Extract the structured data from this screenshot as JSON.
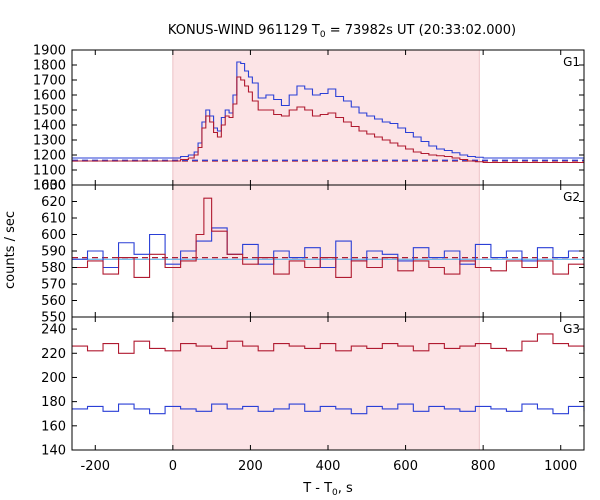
{
  "chart_data": {
    "type": "line",
    "title_parts": [
      "KONUS-WIND 961129 T",
      "0",
      " = 73982s UT (20:33:02.000)"
    ],
    "xlabel_parts": [
      "T - T",
      "0",
      ", s"
    ],
    "ylabel": "counts / sec",
    "xlim": [
      -260,
      1060
    ],
    "x_ticks": [
      -200,
      0,
      200,
      400,
      600,
      800,
      1000
    ],
    "highlight_interval": [
      0,
      790
    ],
    "colors": {
      "red": "#b01a30",
      "blue": "#2a3fd6",
      "light_blue": "#4aa8e8",
      "highlight": "#fce4e6"
    },
    "panels": [
      {
        "label": "G1",
        "ylim": [
          1000,
          1900
        ],
        "y_ticks": [
          1000,
          1100,
          1200,
          1300,
          1400,
          1500,
          1600,
          1700,
          1800,
          1900
        ],
        "background_levels": [
          1160,
          1165
        ],
        "series": [
          {
            "color_key": "blue",
            "x": [
              -260,
              0,
              20,
              40,
              55,
              65,
              75,
              85,
              95,
              105,
              115,
              125,
              135,
              145,
              155,
              165,
              175,
              185,
              195,
              205,
              220,
              240,
              260,
              280,
              300,
              320,
              340,
              360,
              380,
              400,
              420,
              440,
              460,
              480,
              500,
              520,
              540,
              560,
              580,
              600,
              620,
              640,
              660,
              680,
              700,
              720,
              740,
              760,
              780,
              800,
              1060
            ],
            "y": [
              1180,
              1180,
              1190,
              1200,
              1220,
              1280,
              1420,
              1500,
              1460,
              1380,
              1360,
              1450,
              1500,
              1480,
              1600,
              1820,
              1810,
              1760,
              1720,
              1680,
              1580,
              1600,
              1570,
              1530,
              1600,
              1660,
              1640,
              1600,
              1610,
              1640,
              1590,
              1560,
              1520,
              1480,
              1460,
              1440,
              1420,
              1410,
              1380,
              1350,
              1320,
              1290,
              1260,
              1240,
              1230,
              1215,
              1200,
              1190,
              1185,
              1180,
              1175
            ]
          },
          {
            "color_key": "red",
            "x": [
              -260,
              0,
              20,
              40,
              55,
              65,
              75,
              85,
              95,
              105,
              115,
              125,
              135,
              145,
              155,
              165,
              175,
              185,
              195,
              205,
              220,
              240,
              260,
              280,
              300,
              320,
              340,
              360,
              380,
              400,
              420,
              440,
              460,
              480,
              500,
              520,
              540,
              560,
              580,
              600,
              620,
              640,
              660,
              680,
              700,
              720,
              740,
              760,
              780,
              800,
              1060
            ],
            "y": [
              1160,
              1160,
              1170,
              1180,
              1200,
              1250,
              1380,
              1460,
              1420,
              1350,
              1320,
              1400,
              1460,
              1450,
              1540,
              1720,
              1700,
              1660,
              1620,
              1560,
              1500,
              1500,
              1470,
              1460,
              1500,
              1520,
              1500,
              1460,
              1470,
              1480,
              1450,
              1420,
              1390,
              1360,
              1340,
              1320,
              1300,
              1280,
              1260,
              1240,
              1220,
              1210,
              1200,
              1195,
              1190,
              1180,
              1170,
              1160,
              1155,
              1150,
              1150
            ]
          }
        ]
      },
      {
        "label": "G2",
        "ylim": [
          550,
          630
        ],
        "y_ticks": [
          550,
          560,
          570,
          580,
          590,
          600,
          610,
          620,
          630
        ],
        "background_levels": [
          586
        ],
        "series": [
          {
            "color_key": "light_blue",
            "x": [
              -260,
              1060
            ],
            "y": [
              585,
              585
            ]
          },
          {
            "color_key": "blue",
            "x": [
              -260,
              -220,
              -180,
              -140,
              -100,
              -60,
              -20,
              20,
              60,
              100,
              140,
              180,
              220,
              260,
              300,
              340,
              380,
              420,
              460,
              500,
              540,
              580,
              620,
              660,
              700,
              740,
              780,
              820,
              860,
              900,
              940,
              980,
              1020,
              1060
            ],
            "y": [
              585,
              590,
              580,
              595,
              588,
              600,
              582,
              590,
              596,
              604,
              588,
              594,
              582,
              590,
              586,
              592,
              580,
              596,
              584,
              590,
              588,
              584,
              592,
              586,
              590,
              582,
              594,
              586,
              590,
              584,
              592,
              586,
              590,
              586
            ]
          },
          {
            "color_key": "red",
            "x": [
              -260,
              -220,
              -180,
              -140,
              -100,
              -60,
              -20,
              20,
              60,
              80,
              100,
              140,
              180,
              220,
              260,
              300,
              340,
              380,
              420,
              460,
              500,
              540,
              580,
              620,
              660,
              700,
              740,
              780,
              820,
              860,
              900,
              940,
              980,
              1020,
              1060
            ],
            "y": [
              580,
              584,
              576,
              586,
              574,
              588,
              580,
              584,
              600,
              622,
              602,
              588,
              582,
              586,
              576,
              584,
              580,
              586,
              574,
              584,
              580,
              586,
              578,
              584,
              580,
              576,
              584,
              580,
              578,
              584,
              580,
              584,
              576,
              582,
              580
            ]
          }
        ]
      },
      {
        "label": "G3",
        "ylim": [
          140,
          250
        ],
        "y_ticks": [
          140,
          160,
          180,
          200,
          220,
          240
        ],
        "background_levels": [],
        "series": [
          {
            "color_key": "red",
            "x": [
              -260,
              -220,
              -180,
              -140,
              -100,
              -60,
              -20,
              20,
              60,
              100,
              140,
              180,
              220,
              260,
              300,
              340,
              380,
              420,
              460,
              500,
              540,
              580,
              620,
              660,
              700,
              740,
              780,
              820,
              860,
              900,
              940,
              980,
              1020,
              1060
            ],
            "y": [
              226,
              222,
              228,
              220,
              230,
              224,
              222,
              228,
              226,
              224,
              230,
              226,
              222,
              228,
              226,
              224,
              228,
              222,
              226,
              224,
              228,
              226,
              222,
              228,
              224,
              226,
              228,
              224,
              222,
              230,
              236,
              228,
              226,
              222
            ]
          },
          {
            "color_key": "blue",
            "x": [
              -260,
              -220,
              -180,
              -140,
              -100,
              -60,
              -20,
              20,
              60,
              100,
              140,
              180,
              220,
              260,
              300,
              340,
              380,
              420,
              460,
              500,
              540,
              580,
              620,
              660,
              700,
              740,
              780,
              820,
              860,
              900,
              940,
              980,
              1020,
              1060
            ],
            "y": [
              174,
              176,
              172,
              178,
              174,
              170,
              176,
              174,
              172,
              178,
              174,
              176,
              172,
              174,
              178,
              172,
              176,
              174,
              170,
              176,
              174,
              178,
              172,
              176,
              174,
              172,
              176,
              174,
              172,
              178,
              174,
              170,
              176,
              172
            ]
          }
        ]
      }
    ]
  }
}
